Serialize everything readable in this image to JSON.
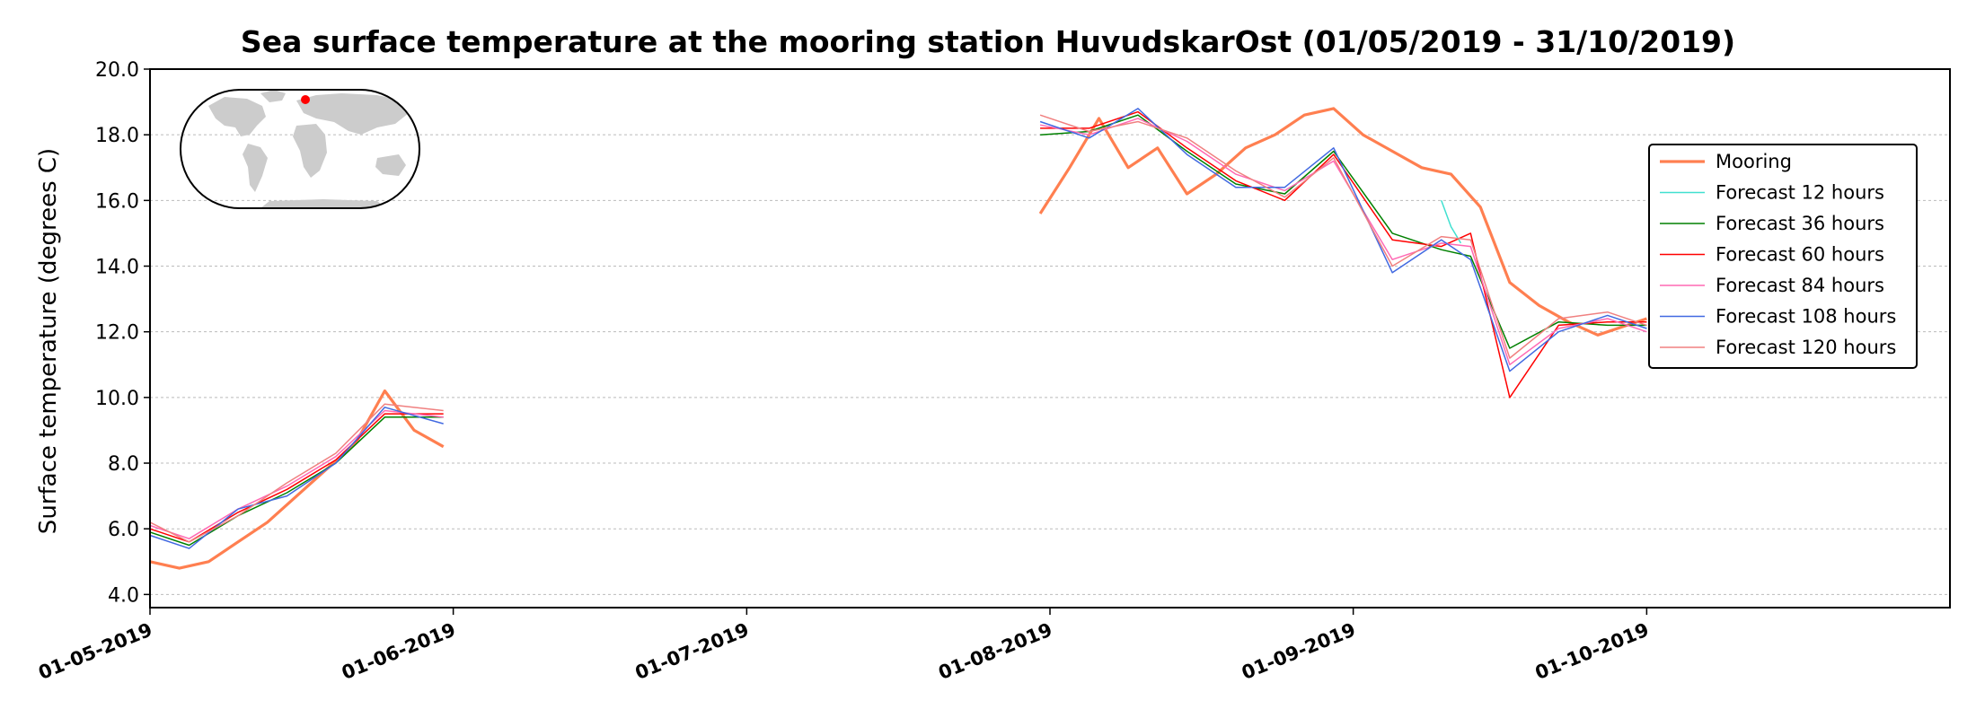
{
  "chart_data": {
    "type": "line",
    "title": "Sea surface temperature at the mooring station HuvudskarOst (01/05/2019 - 31/10/2019)",
    "xlabel": "",
    "ylabel": "Surface temperature (degrees C)",
    "xlim": [
      "2019-05-01",
      "2019-10-31"
    ],
    "ylim": [
      3.6,
      20.0
    ],
    "yticks": [
      "4.0",
      "6.0",
      "8.0",
      "10.0",
      "12.0",
      "14.0",
      "16.0",
      "18.0",
      "20.0"
    ],
    "xticks": [
      "01-05-2019",
      "01-06-2019",
      "01-07-2019",
      "01-08-2019",
      "01-09-2019",
      "01-10-2019"
    ],
    "grid": "horizontal dotted",
    "legend_position": "right",
    "inset_map": "world map with red marker at station location",
    "series": [
      {
        "name": "Mooring",
        "color": "#ff7f50",
        "width": 3.2,
        "x": [
          "2019-05-01",
          "2019-05-04",
          "2019-05-07",
          "2019-05-10",
          "2019-05-13",
          "2019-05-16",
          "2019-05-19",
          "2019-05-22",
          "2019-05-25",
          "2019-05-28",
          "2019-05-31",
          null,
          "2019-07-31",
          "2019-08-03",
          "2019-08-06",
          "2019-08-09",
          "2019-08-12",
          "2019-08-15",
          "2019-08-18",
          "2019-08-21",
          "2019-08-24",
          "2019-08-27",
          "2019-08-30",
          "2019-09-02",
          "2019-09-05",
          "2019-09-08",
          "2019-09-11",
          "2019-09-14",
          "2019-09-17",
          "2019-09-20",
          "2019-09-23",
          "2019-09-26",
          "2019-09-29",
          "2019-10-01"
        ],
        "y": [
          5.0,
          4.8,
          5.0,
          5.6,
          6.2,
          7.0,
          7.8,
          8.6,
          10.2,
          9.0,
          8.5,
          null,
          15.6,
          17.0,
          18.5,
          17.0,
          17.6,
          16.2,
          16.8,
          17.6,
          18.0,
          18.6,
          18.8,
          18.0,
          17.5,
          17.0,
          16.8,
          15.8,
          13.5,
          12.8,
          12.3,
          11.9,
          12.2,
          12.4
        ]
      },
      {
        "name": "Forecast 12 hours",
        "color": "#40e0d0",
        "width": 1.5,
        "x": [
          "2019-09-10",
          "2019-09-11",
          "2019-09-12"
        ],
        "y": [
          16.0,
          15.2,
          14.7
        ]
      },
      {
        "name": "Forecast 36 hours",
        "color": "#008000",
        "width": 1.5,
        "x": [
          "2019-05-01",
          "2019-05-05",
          "2019-05-10",
          "2019-05-15",
          "2019-05-20",
          "2019-05-25",
          "2019-05-31",
          null,
          "2019-07-31",
          "2019-08-05",
          "2019-08-10",
          "2019-08-15",
          "2019-08-20",
          "2019-08-25",
          "2019-08-30",
          "2019-09-05",
          "2019-09-10",
          "2019-09-13",
          "2019-09-17",
          "2019-09-22",
          "2019-09-27",
          "2019-10-01"
        ],
        "y": [
          5.9,
          5.5,
          6.4,
          7.1,
          8.0,
          9.4,
          9.4,
          null,
          18.0,
          18.1,
          18.6,
          17.5,
          16.5,
          16.2,
          17.5,
          15.0,
          14.5,
          14.3,
          11.5,
          12.3,
          12.2,
          12.2
        ]
      },
      {
        "name": "Forecast 60 hours",
        "color": "#ff0000",
        "width": 1.5,
        "x": [
          "2019-05-01",
          "2019-05-05",
          "2019-05-10",
          "2019-05-15",
          "2019-05-20",
          "2019-05-25",
          "2019-05-31",
          null,
          "2019-07-31",
          "2019-08-05",
          "2019-08-10",
          "2019-08-15",
          "2019-08-20",
          "2019-08-25",
          "2019-08-30",
          "2019-09-05",
          "2019-09-10",
          "2019-09-13",
          "2019-09-17",
          "2019-09-22",
          "2019-09-27",
          "2019-10-01"
        ],
        "y": [
          6.0,
          5.6,
          6.5,
          7.2,
          8.1,
          9.5,
          9.5,
          null,
          18.2,
          18.2,
          18.7,
          17.6,
          16.6,
          16.0,
          17.4,
          14.8,
          14.6,
          15.0,
          10.0,
          12.2,
          12.3,
          12.3
        ]
      },
      {
        "name": "Forecast 84 hours",
        "color": "#ff69b4",
        "width": 1.5,
        "x": [
          "2019-05-01",
          "2019-05-05",
          "2019-05-10",
          "2019-05-15",
          "2019-05-20",
          "2019-05-25",
          "2019-05-31",
          null,
          "2019-07-31",
          "2019-08-05",
          "2019-08-10",
          "2019-08-15",
          "2019-08-20",
          "2019-08-25",
          "2019-08-30",
          "2019-09-05",
          "2019-09-10",
          "2019-09-13",
          "2019-09-17",
          "2019-09-22",
          "2019-09-27",
          "2019-10-01"
        ],
        "y": [
          6.1,
          5.7,
          6.6,
          7.3,
          8.2,
          9.6,
          9.4,
          null,
          18.3,
          18.0,
          18.5,
          17.8,
          16.8,
          16.3,
          17.2,
          14.2,
          14.7,
          14.6,
          11.0,
          12.1,
          12.4,
          12.0
        ]
      },
      {
        "name": "Forecast 108 hours",
        "color": "#4169e1",
        "width": 1.5,
        "x": [
          "2019-05-01",
          "2019-05-05",
          "2019-05-10",
          "2019-05-15",
          "2019-05-20",
          "2019-05-25",
          "2019-05-31",
          null,
          "2019-07-31",
          "2019-08-05",
          "2019-08-10",
          "2019-08-15",
          "2019-08-20",
          "2019-08-25",
          "2019-08-30",
          "2019-09-05",
          "2019-09-10",
          "2019-09-13",
          "2019-09-17",
          "2019-09-22",
          "2019-09-27",
          "2019-10-01"
        ],
        "y": [
          5.8,
          5.4,
          6.6,
          7.0,
          8.0,
          9.7,
          9.2,
          null,
          18.4,
          17.9,
          18.8,
          17.4,
          16.4,
          16.4,
          17.6,
          13.8,
          14.8,
          14.2,
          10.8,
          12.0,
          12.5,
          12.1
        ]
      },
      {
        "name": "Forecast 120 hours",
        "color": "#f08080",
        "width": 1.5,
        "x": [
          "2019-05-01",
          "2019-05-05",
          "2019-05-10",
          "2019-05-15",
          "2019-05-20",
          "2019-05-25",
          "2019-05-31",
          null,
          "2019-07-31",
          "2019-08-05",
          "2019-08-10",
          "2019-08-15",
          "2019-08-20",
          "2019-08-25",
          "2019-08-30",
          "2019-09-05",
          "2019-09-10",
          "2019-09-13",
          "2019-09-17",
          "2019-09-22",
          "2019-09-27",
          "2019-10-01"
        ],
        "y": [
          6.2,
          5.6,
          6.4,
          7.4,
          8.3,
          9.8,
          9.6,
          null,
          18.6,
          18.1,
          18.4,
          17.9,
          16.9,
          16.1,
          17.3,
          14.0,
          14.9,
          14.8,
          11.2,
          12.4,
          12.6,
          12.2
        ]
      }
    ]
  },
  "colors": {
    "marker": "#ff0000",
    "land": "#cccccc",
    "grid": "#bbbbbb"
  }
}
